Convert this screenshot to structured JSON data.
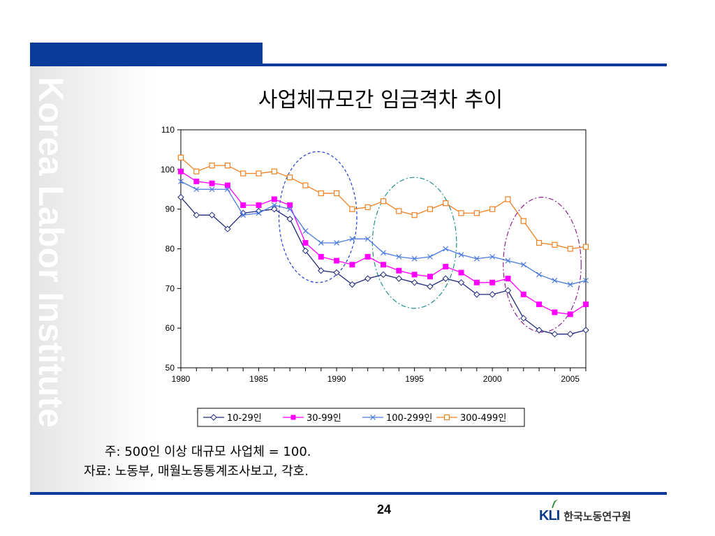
{
  "slide": {
    "title": "사업체규모간 임금격차 추이",
    "watermark": "Korea Labor Institute",
    "note1": "주: 500인 이상 대규모 사업체 = 100.",
    "note2": "자료: 노동부, 매월노동통계조사보고, 각호.",
    "page_number": "24",
    "logo_mark": "KLI",
    "logo_text": "한국노동연구원"
  },
  "colors": {
    "brand": "#0a3a9a"
  },
  "chart_data": {
    "type": "line",
    "title": "",
    "xlabel": "",
    "ylabel": "",
    "xlim": [
      1980,
      2006
    ],
    "ylim": [
      50,
      110
    ],
    "yticks": [
      50,
      60,
      70,
      80,
      90,
      100,
      110
    ],
    "xticks": [
      1980,
      1985,
      1990,
      1995,
      2000,
      2005
    ],
    "grid": false,
    "legend_position": "bottom",
    "x": [
      1980,
      1981,
      1982,
      1983,
      1984,
      1985,
      1986,
      1987,
      1988,
      1989,
      1990,
      1991,
      1992,
      1993,
      1994,
      1995,
      1996,
      1997,
      1998,
      1999,
      2000,
      2001,
      2002,
      2003,
      2004,
      2005,
      2006
    ],
    "series": [
      {
        "name": "10-29인",
        "color": "#1f2a7a",
        "marker": "diamond",
        "values": [
          93,
          88.5,
          88.5,
          85,
          89,
          89.5,
          90,
          87.5,
          79.5,
          74.5,
          74,
          71,
          72.5,
          73.5,
          72.5,
          71.5,
          70.5,
          72.5,
          71.5,
          68.5,
          68.5,
          69.5,
          62.5,
          59.5,
          58.5,
          58.5,
          59.5
        ]
      },
      {
        "name": "30-99인",
        "color": "#ff00ff",
        "marker": "square",
        "values": [
          99.5,
          97,
          96.5,
          96,
          91,
          91,
          92.5,
          91,
          81.5,
          78,
          77,
          76,
          78,
          76,
          74.5,
          73.5,
          73,
          75.5,
          74,
          71.5,
          71.5,
          72.5,
          68.5,
          66,
          64,
          63.5,
          66
        ]
      },
      {
        "name": "100-299인",
        "color": "#4a7ae0",
        "marker": "x",
        "values": [
          97,
          95,
          95,
          95,
          88.5,
          89,
          91,
          90,
          84.5,
          81.5,
          81.5,
          82.5,
          82.5,
          79,
          78,
          77.5,
          78,
          80,
          78.5,
          77.5,
          78,
          77,
          76,
          73.5,
          72,
          71,
          72
        ]
      },
      {
        "name": "300-499인",
        "color": "#f08020",
        "marker": "open-square",
        "values": [
          103,
          99.5,
          101,
          101,
          99,
          99,
          99.5,
          98,
          96,
          94,
          94,
          90,
          90.5,
          92,
          89.5,
          88.5,
          90,
          91.5,
          89,
          89,
          90,
          92.5,
          87,
          81.5,
          81,
          80,
          80.5
        ]
      }
    ],
    "annotations": [
      {
        "type": "ellipse",
        "style": "dashed",
        "color": "#2040d0",
        "cx": 1988.8,
        "cy": 88,
        "rx": 2.5,
        "ry": 16.5
      },
      {
        "type": "ellipse",
        "style": "dash-dot",
        "color": "#209090",
        "cx": 1995,
        "cy": 81.5,
        "rx": 2.7,
        "ry": 16.5
      },
      {
        "type": "ellipse",
        "style": "dash-dot",
        "color": "#902090",
        "cx": 2003.2,
        "cy": 76,
        "rx": 2.5,
        "ry": 17
      }
    ]
  }
}
